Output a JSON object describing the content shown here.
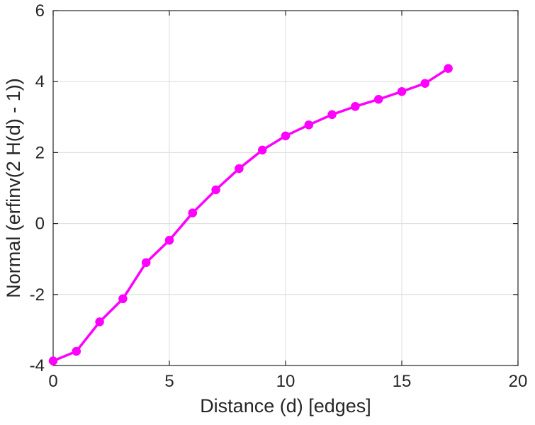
{
  "chart_data": {
    "type": "line",
    "title": "",
    "xlabel": "Distance (d) [edges]",
    "ylabel": "Normal (erfinv(2 H(d) - 1))",
    "xlim": [
      0,
      20
    ],
    "ylim": [
      -4,
      6
    ],
    "xticks": [
      0,
      5,
      10,
      15,
      20
    ],
    "yticks": [
      -4,
      -2,
      0,
      2,
      4,
      6
    ],
    "grid": true,
    "legend": null,
    "series": [
      {
        "name": "normal-transformed-distance",
        "color": "#ff00ff",
        "marker": "circle",
        "x": [
          0,
          1,
          2,
          3,
          4,
          5,
          6,
          7,
          8,
          9,
          10,
          11,
          12,
          13,
          14,
          15,
          16,
          17
        ],
        "y": [
          -3.87,
          -3.6,
          -2.77,
          -2.12,
          -1.1,
          -0.47,
          0.3,
          0.95,
          1.55,
          2.07,
          2.47,
          2.78,
          3.07,
          3.3,
          3.5,
          3.72,
          3.95,
          4.37
        ]
      }
    ]
  },
  "style": {
    "axis_color": "#262626",
    "grid_color": "#dcdcdc",
    "background": "#ffffff",
    "line_width": 3.5,
    "marker_radius": 5.5,
    "tick_length": 7
  }
}
